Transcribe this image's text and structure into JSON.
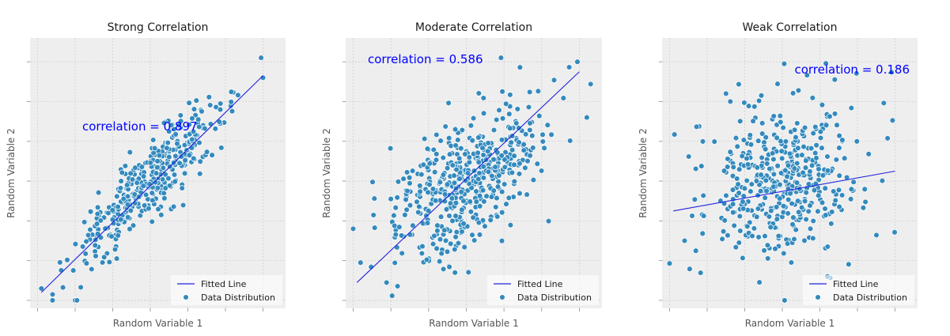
{
  "colors": {
    "background": "#ffffff",
    "panel": "#eeeeee",
    "grid": "#d0d0d0",
    "points": "#348abd",
    "point_edge": "#ffffff",
    "fit_line": "#2222dd",
    "annotation": "#0000ff"
  },
  "chart_data": [
    {
      "type": "scatter",
      "title": "Strong Correlation",
      "xlabel": "Random Variable 1",
      "ylabel": "Random Variable 2",
      "xlim": [
        -3.2,
        3.6
      ],
      "ylim": [
        -3.2,
        3.6
      ],
      "grid": true,
      "tick_labels_visible": false,
      "annotation": "correlation = 0.897",
      "legend": {
        "placement": "lower-right",
        "entries": [
          "Fitted Line",
          "Data Distribution"
        ]
      },
      "fit_line": {
        "x": [
          -2.9,
          3.0
        ],
        "y": [
          -2.8,
          2.65
        ]
      },
      "n_points": 400,
      "correlation": 0.897,
      "x_mean": 0.0,
      "x_sd": 1.0,
      "extra_points": [
        [
          2.95,
          3.1
        ],
        [
          3.0,
          2.6
        ],
        [
          -2.9,
          -2.7
        ],
        [
          -2.6,
          -2.85
        ]
      ]
    },
    {
      "type": "scatter",
      "title": "Moderate Correlation",
      "xlabel": "Random Variable 1",
      "ylabel": "Random Variable 2",
      "xlim": [
        -3.2,
        3.6
      ],
      "ylim": [
        -3.2,
        3.6
      ],
      "grid": true,
      "tick_labels_visible": false,
      "annotation": "correlation = 0.586",
      "legend": {
        "placement": "lower-right",
        "entries": [
          "Fitted Line",
          "Data Distribution"
        ]
      },
      "fit_line": {
        "x": [
          -2.9,
          3.0
        ],
        "y": [
          -2.55,
          2.75
        ]
      },
      "n_points": 500,
      "correlation": 0.586,
      "x_mean": 0.0,
      "x_sd": 1.0,
      "extra_points": [
        [
          2.95,
          3.0
        ],
        [
          3.2,
          1.6
        ],
        [
          -3.0,
          -1.2
        ]
      ]
    },
    {
      "type": "scatter",
      "title": "Weak Correlation",
      "xlabel": "Random Variable 1",
      "ylabel": "Random Variable 2",
      "xlim": [
        -3.2,
        3.6
      ],
      "ylim": [
        -3.2,
        3.6
      ],
      "grid": true,
      "tick_labels_visible": false,
      "annotation": "correlation = 0.186",
      "legend": {
        "placement": "lower-right",
        "entries": [
          "Fitted Line",
          "Data Distribution"
        ]
      },
      "fit_line": {
        "x": [
          -2.9,
          3.0
        ],
        "y": [
          -0.75,
          0.25
        ]
      },
      "n_points": 450,
      "correlation": 0.186,
      "x_mean": 0.0,
      "x_sd": 1.0,
      "extra_points": [
        [
          -1.5,
          2.2
        ],
        [
          0.05,
          2.95
        ],
        [
          -2.6,
          -1.5
        ],
        [
          1.2,
          -2.4
        ]
      ]
    }
  ]
}
